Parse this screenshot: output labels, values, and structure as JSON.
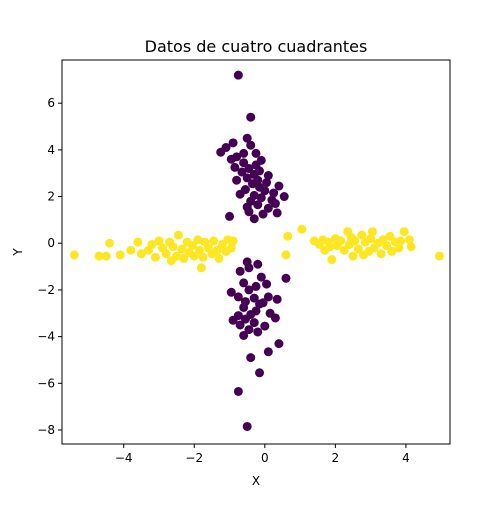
{
  "chart_data": {
    "type": "scatter",
    "title": "Datos de cuatro cuadrantes",
    "xlabel": "X",
    "ylabel": "Y",
    "xlim": [
      -5.75,
      5.25
    ],
    "ylim": [
      -8.6,
      7.85
    ],
    "xticks": [
      -4,
      -2,
      0,
      2,
      4
    ],
    "yticks": [
      -8,
      -6,
      -4,
      -2,
      0,
      2,
      4,
      6
    ],
    "grid": false,
    "colors": {
      "cluster_a": "#440154",
      "cluster_b": "#fde725"
    },
    "series": [
      {
        "color": "#440154",
        "points": [
          [
            -0.75,
            7.2
          ],
          [
            -0.4,
            5.4
          ],
          [
            -0.5,
            4.5
          ],
          [
            -0.9,
            4.3
          ],
          [
            -0.4,
            4.2
          ],
          [
            -1.1,
            4.1
          ],
          [
            -1.25,
            3.9
          ],
          [
            -0.6,
            3.85
          ],
          [
            -0.25,
            3.85
          ],
          [
            -0.8,
            3.7
          ],
          [
            -0.95,
            3.6
          ],
          [
            -0.1,
            3.55
          ],
          [
            -0.6,
            3.45
          ],
          [
            -0.25,
            3.35
          ],
          [
            -0.85,
            3.25
          ],
          [
            -0.45,
            3.2
          ],
          [
            -0.15,
            3.1
          ],
          [
            -0.65,
            3.05
          ],
          [
            -0.3,
            2.95
          ],
          [
            0.1,
            2.9
          ],
          [
            -0.5,
            2.8
          ],
          [
            -0.2,
            2.7
          ],
          [
            -0.8,
            2.7
          ],
          [
            0.05,
            2.6
          ],
          [
            -0.35,
            2.55
          ],
          [
            -0.15,
            2.4
          ],
          [
            0.4,
            2.45
          ],
          [
            -0.55,
            2.3
          ],
          [
            0.0,
            2.25
          ],
          [
            -0.7,
            2.1
          ],
          [
            0.25,
            2.15
          ],
          [
            -0.3,
            2.05
          ],
          [
            0.55,
            2.0
          ],
          [
            -0.1,
            1.95
          ],
          [
            0.2,
            1.85
          ],
          [
            -0.4,
            1.8
          ],
          [
            0.3,
            1.7
          ],
          [
            -0.2,
            1.65
          ],
          [
            -0.5,
            1.55
          ],
          [
            0.1,
            1.5
          ],
          [
            0.35,
            1.3
          ],
          [
            -0.45,
            1.35
          ],
          [
            -1.0,
            1.15
          ],
          [
            -0.3,
            1.05
          ],
          [
            -0.05,
            1.25
          ],
          [
            -0.5,
            -0.8
          ],
          [
            -0.45,
            -1.05
          ],
          [
            -0.2,
            -0.9
          ],
          [
            -0.7,
            -1.2
          ],
          [
            0.6,
            -1.5
          ],
          [
            -0.1,
            -1.45
          ],
          [
            -0.6,
            -1.7
          ],
          [
            -0.25,
            -1.85
          ],
          [
            0.05,
            -1.75
          ],
          [
            -0.95,
            -2.1
          ],
          [
            -0.45,
            -2.0
          ],
          [
            -0.75,
            -2.3
          ],
          [
            -0.3,
            -2.35
          ],
          [
            0.1,
            -2.3
          ],
          [
            -0.55,
            -2.5
          ],
          [
            -0.15,
            -2.6
          ],
          [
            0.35,
            -2.4
          ],
          [
            -0.6,
            -2.75
          ],
          [
            -0.05,
            -2.55
          ],
          [
            -0.25,
            -2.9
          ],
          [
            -0.75,
            -3.1
          ],
          [
            -0.4,
            -3.05
          ],
          [
            0.15,
            -3.0
          ],
          [
            0.3,
            -3.2
          ],
          [
            -0.55,
            -3.25
          ],
          [
            -0.9,
            -3.3
          ],
          [
            -0.3,
            -3.4
          ],
          [
            -0.7,
            -3.5
          ],
          [
            0.0,
            -3.55
          ],
          [
            -0.45,
            -3.7
          ],
          [
            -0.2,
            -3.8
          ],
          [
            -0.6,
            -3.95
          ],
          [
            0.4,
            -4.3
          ],
          [
            0.1,
            -4.65
          ],
          [
            -0.4,
            -4.9
          ],
          [
            -0.15,
            -5.55
          ],
          [
            -0.75,
            -6.35
          ],
          [
            -0.5,
            -7.85
          ]
        ]
      },
      {
        "color": "#fde725",
        "points": [
          [
            -5.4,
            -0.5
          ],
          [
            -4.7,
            -0.55
          ],
          [
            -4.5,
            -0.55
          ],
          [
            -4.4,
            0.0
          ],
          [
            -4.1,
            -0.5
          ],
          [
            -3.8,
            -0.3
          ],
          [
            -3.6,
            0.05
          ],
          [
            -3.5,
            -0.45
          ],
          [
            -3.3,
            -0.3
          ],
          [
            -3.2,
            -0.05
          ],
          [
            -3.1,
            -0.6
          ],
          [
            -3.0,
            0.1
          ],
          [
            -2.9,
            -0.2
          ],
          [
            -2.8,
            -0.45
          ],
          [
            -2.7,
            0.05
          ],
          [
            -2.65,
            -0.75
          ],
          [
            -2.6,
            -0.15
          ],
          [
            -2.5,
            -0.55
          ],
          [
            -2.45,
            0.35
          ],
          [
            -2.35,
            -0.25
          ],
          [
            -2.3,
            -0.65
          ],
          [
            -2.2,
            0.05
          ],
          [
            -2.15,
            -0.4
          ],
          [
            -2.05,
            -0.1
          ],
          [
            -2.0,
            -0.55
          ],
          [
            -1.9,
            0.15
          ],
          [
            -1.85,
            -0.3
          ],
          [
            -1.8,
            -1.05
          ],
          [
            -1.75,
            -0.6
          ],
          [
            -1.7,
            0.05
          ],
          [
            -1.6,
            -0.2
          ],
          [
            -1.5,
            -0.45
          ],
          [
            -1.45,
            0.1
          ],
          [
            -1.35,
            -0.3
          ],
          [
            -1.3,
            -0.65
          ],
          [
            -1.2,
            -0.05
          ],
          [
            -1.1,
            -0.35
          ],
          [
            -1.05,
            0.15
          ],
          [
            -0.95,
            -0.2
          ],
          [
            -0.9,
            0.1
          ],
          [
            0.6,
            -0.5
          ],
          [
            0.65,
            0.3
          ],
          [
            1.05,
            0.6
          ],
          [
            1.4,
            0.1
          ],
          [
            1.55,
            -0.05
          ],
          [
            1.65,
            0.15
          ],
          [
            1.7,
            -0.3
          ],
          [
            1.8,
            0.05
          ],
          [
            1.85,
            -0.15
          ],
          [
            1.9,
            -0.7
          ],
          [
            2.0,
            0.2
          ],
          [
            2.05,
            -0.1
          ],
          [
            2.15,
            0.1
          ],
          [
            2.25,
            -0.3
          ],
          [
            2.35,
            0.5
          ],
          [
            2.4,
            -0.05
          ],
          [
            2.45,
            0.25
          ],
          [
            2.5,
            -0.55
          ],
          [
            2.55,
            0.1
          ],
          [
            2.65,
            -0.25
          ],
          [
            2.75,
            0.35
          ],
          [
            2.8,
            -0.5
          ],
          [
            2.85,
            0.05
          ],
          [
            2.95,
            -0.35
          ],
          [
            3.0,
            0.2
          ],
          [
            3.05,
            0.5
          ],
          [
            3.1,
            -0.2
          ],
          [
            3.2,
            0.0
          ],
          [
            3.3,
            -0.45
          ],
          [
            3.35,
            0.15
          ],
          [
            3.45,
            -0.1
          ],
          [
            3.55,
            0.3
          ],
          [
            3.6,
            -0.35
          ],
          [
            3.7,
            0.05
          ],
          [
            3.8,
            -0.2
          ],
          [
            3.85,
            0.1
          ],
          [
            3.95,
            0.5
          ],
          [
            4.1,
            0.15
          ],
          [
            4.15,
            -0.15
          ],
          [
            4.95,
            -0.55
          ]
        ]
      }
    ]
  }
}
